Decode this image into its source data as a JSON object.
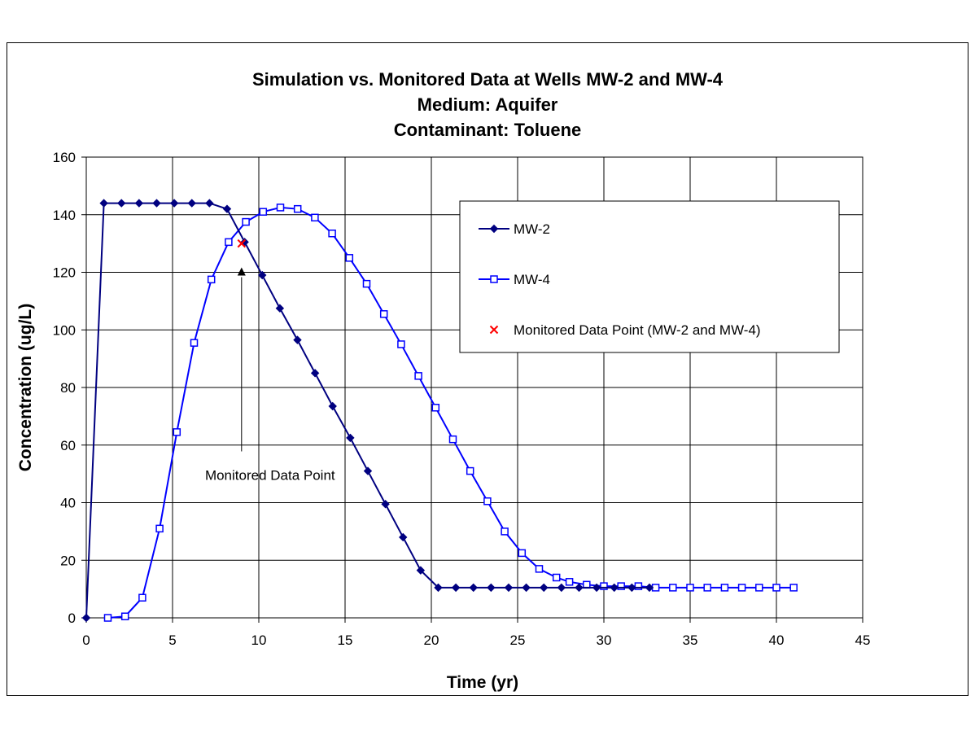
{
  "chart_data": {
    "type": "line",
    "title": "Simulation vs. Monitored Data at Wells MW-2 and MW-4",
    "subtitle_lines": [
      "Medium: Aquifer",
      "Contaminant: Toluene"
    ],
    "xlabel": "Time (yr)",
    "ylabel": "Concentration (ug/L)",
    "xlim": [
      0,
      45
    ],
    "ylim": [
      0,
      160
    ],
    "xticks": [
      0,
      5,
      10,
      15,
      20,
      25,
      30,
      35,
      40,
      45
    ],
    "yticks": [
      0,
      20,
      40,
      60,
      80,
      100,
      120,
      140,
      160
    ],
    "grid": true,
    "legend_position": "upper-right",
    "series": [
      {
        "name": "MW-2",
        "color": "#000080",
        "marker": "filled-diamond",
        "x": [
          0,
          1.02,
          2.04,
          3.06,
          4.08,
          5.1,
          6.12,
          7.14,
          8.16,
          9.18,
          10.2,
          11.22,
          12.24,
          13.26,
          14.28,
          15.3,
          16.32,
          17.34,
          18.36,
          19.38,
          20.4,
          21.42,
          22.44,
          23.46,
          24.48,
          25.5,
          26.52,
          27.54,
          28.56,
          29.58,
          30.6,
          31.62,
          32.64
        ],
        "y": [
          0,
          144,
          144,
          144,
          144,
          144,
          144,
          144,
          142,
          130.5,
          119,
          107.5,
          96.5,
          85,
          73.5,
          62.5,
          51,
          39.5,
          28,
          16.5,
          10.5,
          10.5,
          10.5,
          10.5,
          10.5,
          10.5,
          10.5,
          10.5,
          10.5,
          10.5,
          10.5,
          10.5,
          10.5
        ]
      },
      {
        "name": "MW-4",
        "color": "#0000ff",
        "marker": "open-square",
        "x": [
          1.25,
          2.25,
          3.25,
          4.25,
          5.25,
          6.25,
          7.25,
          8.25,
          9.25,
          10.25,
          11.25,
          12.25,
          13.25,
          14.25,
          15.25,
          16.25,
          17.25,
          18.25,
          19.25,
          20.25,
          21.25,
          22.25,
          23.25,
          24.25,
          25.25,
          26.25,
          27.25,
          28.0,
          29.0,
          30.0,
          31.0,
          32.0,
          33.0,
          34.0,
          35.0,
          36.0,
          37.0,
          38.0,
          39.0,
          40.0,
          41.0
        ],
        "y": [
          0,
          0.5,
          7,
          31,
          64.5,
          95.5,
          117.5,
          130.5,
          137.5,
          141,
          142.5,
          142,
          139,
          133.5,
          125,
          116,
          105.5,
          95,
          84,
          73,
          62,
          51,
          40.5,
          30,
          22.5,
          17,
          14,
          12.5,
          11.5,
          11,
          11,
          11,
          10.5,
          10.5,
          10.5,
          10.5,
          10.5,
          10.5,
          10.5,
          10.5,
          10.5
        ]
      },
      {
        "name": "Monitored Data Point (MW-2 and MW-4)",
        "color": "#ff0000",
        "marker": "x",
        "x": [
          9
        ],
        "y": [
          130
        ]
      }
    ],
    "annotation": {
      "text": "Monitored Data Point",
      "points_to": {
        "x": 9,
        "y": 120
      }
    }
  }
}
